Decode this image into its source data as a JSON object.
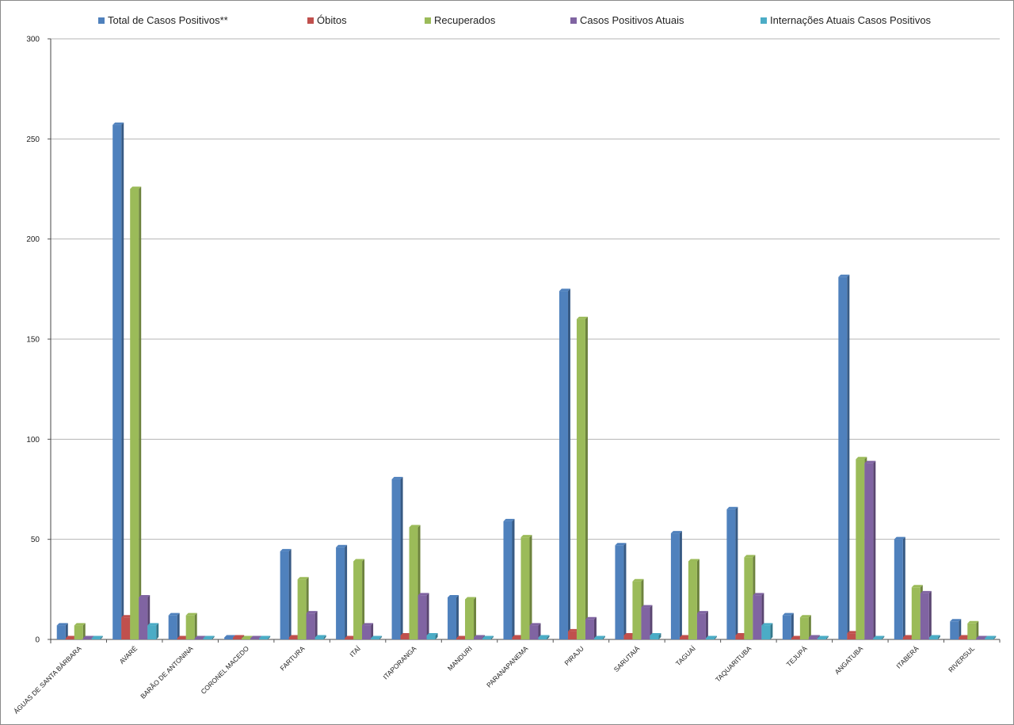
{
  "chart_data": {
    "type": "bar",
    "categories": [
      "ÁGUAS DE SANTA BÁRBARA",
      "AVARÉ",
      "BARÃO DE ANTONINA",
      "CORONEL MACEDO",
      "FARTURA",
      "ITAÍ",
      "ITAPORANGA",
      "MANDURI",
      "PARANAPANEMA",
      "PIRAJU",
      "SARUTAIÁ",
      "TAGUAÍ",
      "TAQUARITUBA",
      "TEJUPÁ",
      "ANGATUBA",
      "ITABERÁ",
      "RIVERSUL"
    ],
    "series": [
      {
        "name": "Total de Casos Positivos**",
        "color": "#4f81bd",
        "values": [
          7,
          257,
          12,
          1,
          44,
          46,
          80,
          21,
          59,
          174,
          47,
          53,
          65,
          12,
          181,
          50,
          9
        ]
      },
      {
        "name": "Óbitos",
        "color": "#c0504d",
        "values": [
          0,
          11,
          0,
          1,
          1,
          0,
          2,
          0,
          1,
          4,
          2,
          1,
          2,
          0,
          3,
          1,
          1
        ]
      },
      {
        "name": "Recuperados",
        "color": "#9bbb59",
        "values": [
          7,
          225,
          12,
          0,
          30,
          39,
          56,
          20,
          51,
          160,
          29,
          39,
          41,
          11,
          90,
          26,
          8
        ]
      },
      {
        "name": "Casos Positivos Atuais",
        "color": "#8064a2",
        "values": [
          0,
          21,
          0,
          0,
          13,
          7,
          22,
          1,
          7,
          10,
          16,
          13,
          22,
          1,
          88,
          23,
          0
        ]
      },
      {
        "name": "Internações Atuais Casos Positivos",
        "color": "#4bacc6",
        "values": [
          0,
          7,
          0,
          0,
          1,
          0,
          2,
          0,
          1,
          0,
          2,
          0,
          7,
          0,
          0,
          1,
          0
        ]
      }
    ],
    "yticks": [
      "0",
      "50",
      "100",
      "150",
      "200",
      "250",
      "300"
    ],
    "ylim": [
      0,
      300
    ],
    "grid": true,
    "legend_position": "top"
  }
}
